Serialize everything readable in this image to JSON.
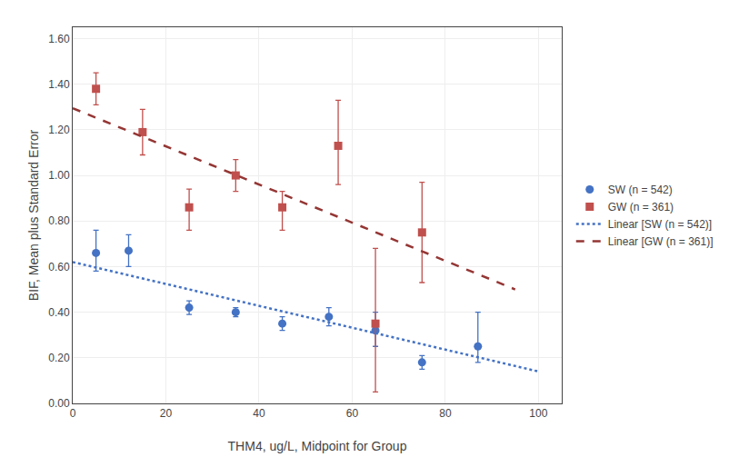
{
  "chart_data": {
    "type": "scatter",
    "x_label": "THM4, ug/L, Midpoint for Group",
    "y_label": "BIF, Mean plus Standard Error",
    "xlim": [
      0,
      105
    ],
    "ylim": [
      0.0,
      1.65
    ],
    "xticks": [
      0,
      20,
      40,
      60,
      80,
      100
    ],
    "yticks": [
      {
        "value": 0.0,
        "label": "0.00"
      },
      {
        "value": 0.2,
        "label": "0.20"
      },
      {
        "value": 0.4,
        "label": "0.40"
      },
      {
        "value": 0.6,
        "label": "0.60"
      },
      {
        "value": 0.8,
        "label": "0.80"
      },
      {
        "value": 1.0,
        "label": "1.00"
      },
      {
        "value": 1.2,
        "label": "1.20"
      },
      {
        "value": 1.4,
        "label": "1.40"
      },
      {
        "value": 1.6,
        "label": "1.60"
      }
    ],
    "grid": true,
    "legend": "right",
    "series": [
      {
        "name": "SW (n = 542)",
        "type": "scatter",
        "color": "#4472C4",
        "marker": "circle",
        "x": [
          5,
          12,
          25,
          35,
          45,
          55,
          65,
          75,
          87
        ],
        "values": [
          0.66,
          0.67,
          0.42,
          0.4,
          0.35,
          0.38,
          0.32,
          0.18,
          0.25
        ],
        "error_low": [
          0.08,
          0.07,
          0.03,
          0.02,
          0.03,
          0.04,
          0.07,
          0.03,
          0.07
        ],
        "error_high": [
          0.1,
          0.07,
          0.03,
          0.02,
          0.03,
          0.04,
          0.08,
          0.03,
          0.15
        ]
      },
      {
        "name": "GW (n = 361)",
        "type": "scatter",
        "color": "#C0504D",
        "marker": "square",
        "x": [
          5,
          15,
          25,
          35,
          45,
          57,
          65,
          75
        ],
        "values": [
          1.38,
          1.19,
          0.86,
          1.0,
          0.86,
          1.13,
          0.35,
          0.75
        ],
        "error_low": [
          0.07,
          0.1,
          0.1,
          0.07,
          0.1,
          0.17,
          0.3,
          0.22
        ],
        "error_high": [
          0.07,
          0.1,
          0.08,
          0.07,
          0.07,
          0.2,
          0.33,
          0.22
        ]
      },
      {
        "name": "Linear [SW (n = 542)]",
        "type": "line",
        "color": "#4472C4",
        "line_style": "dotted",
        "x": [
          0,
          100
        ],
        "values": [
          0.62,
          0.14
        ]
      },
      {
        "name": "Linear [GW (n = 361)]",
        "type": "line",
        "color": "#943634",
        "line_style": "dashed",
        "x": [
          0,
          95
        ],
        "values": [
          1.295,
          0.5
        ]
      }
    ]
  }
}
